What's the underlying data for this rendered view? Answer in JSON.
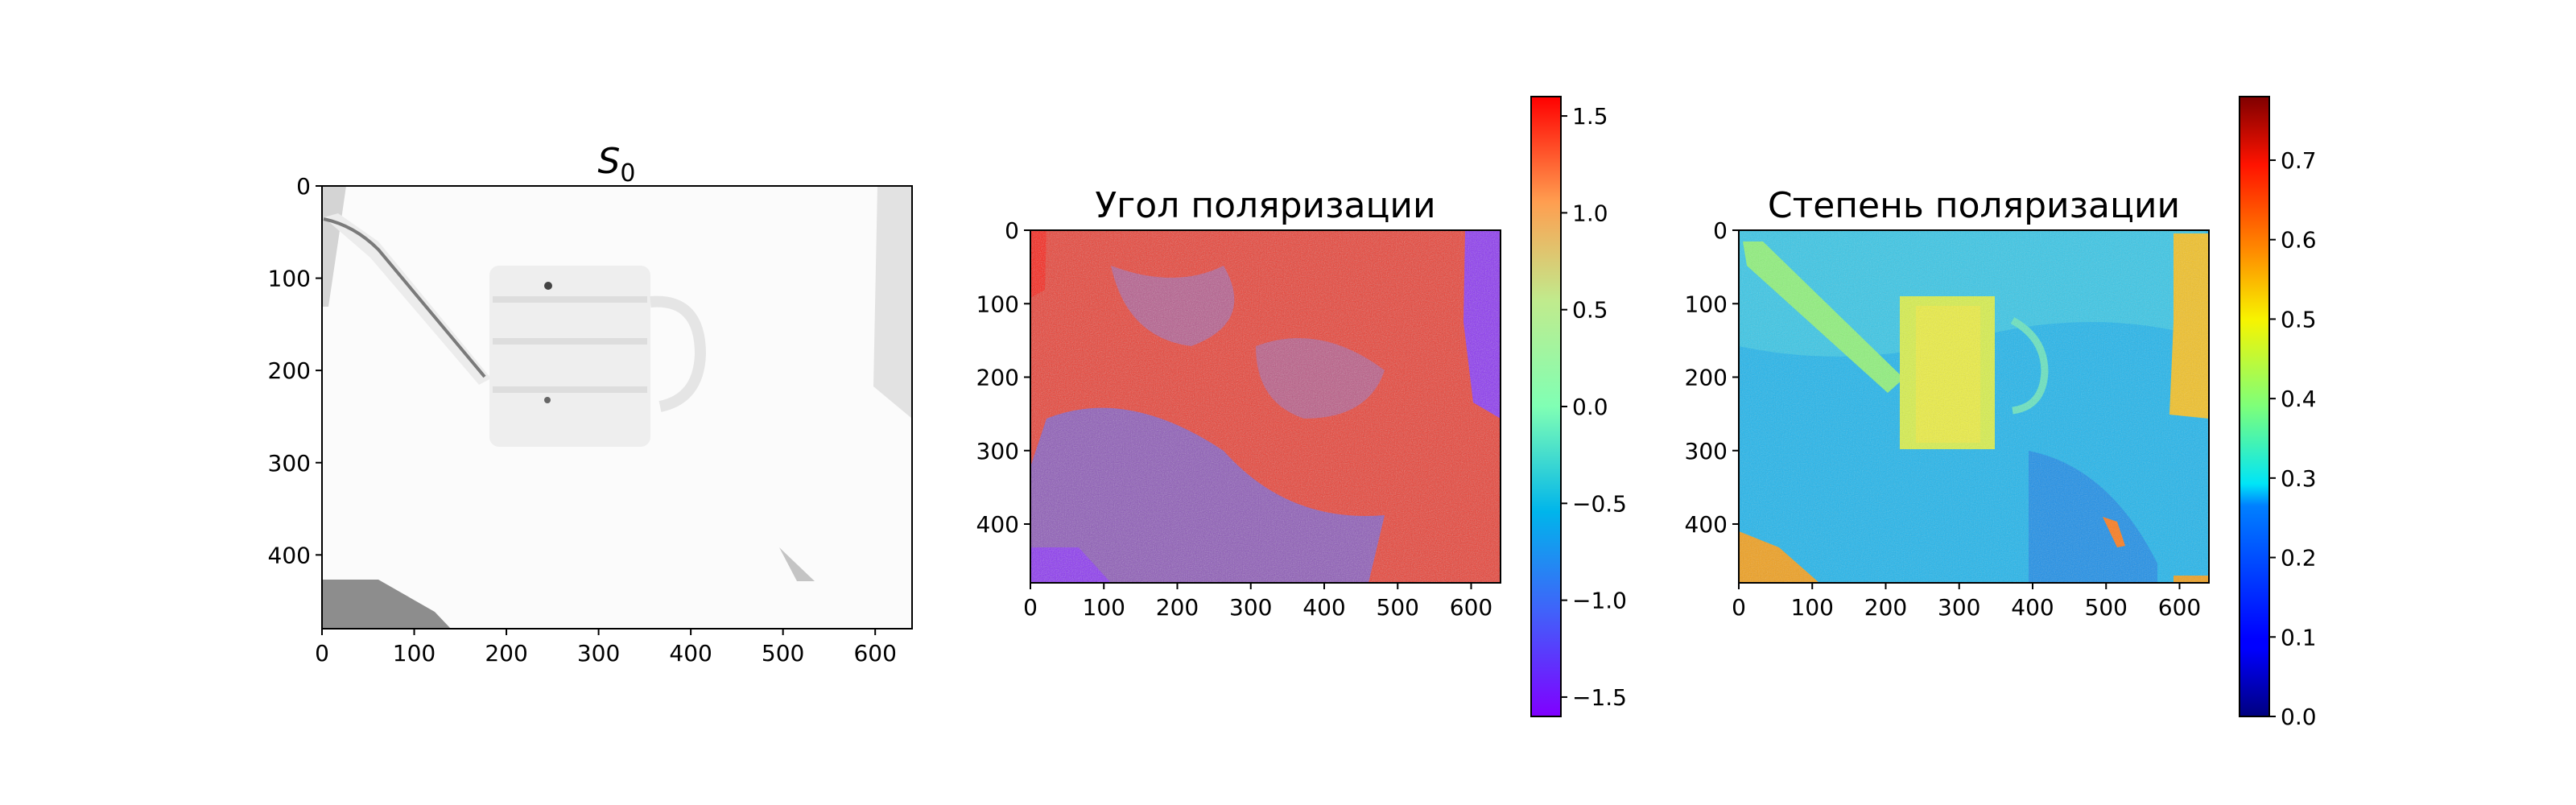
{
  "chart_data": [
    {
      "type": "heatmap",
      "title": "S",
      "title_subscript": "0",
      "colormap": "gray_r",
      "x_ticks": [
        "0",
        "100",
        "200",
        "300",
        "400",
        "500",
        "600"
      ],
      "y_ticks": [
        "0",
        "100",
        "200",
        "300",
        "400"
      ],
      "xlim": [
        0,
        640
      ],
      "ylim": [
        480,
        0
      ],
      "colorbar": false,
      "image_description": "Near-white grayscale image of a watering can with light-gray regions on a white background"
    },
    {
      "type": "heatmap",
      "title": "Угол поляризации",
      "colormap": "rainbow",
      "x_ticks": [
        "0",
        "100",
        "200",
        "300",
        "400",
        "500",
        "600"
      ],
      "y_ticks": [
        "0",
        "100",
        "200",
        "300",
        "400"
      ],
      "xlim": [
        0,
        640
      ],
      "ylim": [
        480,
        0
      ],
      "colorbar": true,
      "colorbar_range": [
        -1.6,
        1.6
      ],
      "colorbar_ticks": [
        "1.5",
        "1.0",
        "0.5",
        "0.0",
        "−0.5",
        "−1.0",
        "−1.5"
      ],
      "colorbar_tick_values": [
        1.5,
        1.0,
        0.5,
        0.0,
        -0.5,
        -1.0,
        -1.5
      ]
    },
    {
      "type": "heatmap",
      "title": "Степень поляризации",
      "colormap": "jet",
      "x_ticks": [
        "0",
        "100",
        "200",
        "300",
        "400",
        "500",
        "600"
      ],
      "y_ticks": [
        "0",
        "100",
        "200",
        "300",
        "400"
      ],
      "xlim": [
        0,
        640
      ],
      "ylim": [
        480,
        0
      ],
      "colorbar": true,
      "colorbar_range": [
        0.0,
        0.78
      ],
      "colorbar_ticks": [
        "0.7",
        "0.6",
        "0.5",
        "0.4",
        "0.3",
        "0.2",
        "0.1",
        "0.0"
      ],
      "colorbar_tick_values": [
        0.7,
        0.6,
        0.5,
        0.4,
        0.3,
        0.2,
        0.1,
        0.0
      ]
    }
  ]
}
